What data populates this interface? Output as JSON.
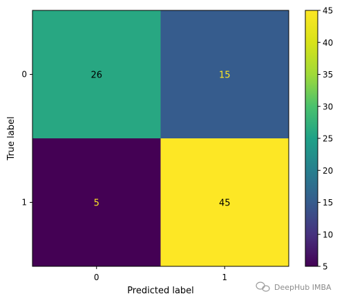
{
  "chart_data": {
    "type": "heatmap",
    "title": "",
    "xlabel": "Predicted label",
    "ylabel": "True label",
    "x_categories": [
      "0",
      "1"
    ],
    "y_categories": [
      "0",
      "1"
    ],
    "values": [
      [
        26,
        15
      ],
      [
        5,
        45
      ]
    ],
    "colormap": "viridis",
    "colorbar": {
      "range": [
        5,
        45
      ],
      "ticks": [
        "5",
        "10",
        "15",
        "20",
        "25",
        "30",
        "35",
        "40",
        "45"
      ]
    }
  },
  "watermark": {
    "text": "DeepHub IMBA"
  },
  "colors": {
    "text_dark": "#000000",
    "text_light": "#fde725"
  }
}
